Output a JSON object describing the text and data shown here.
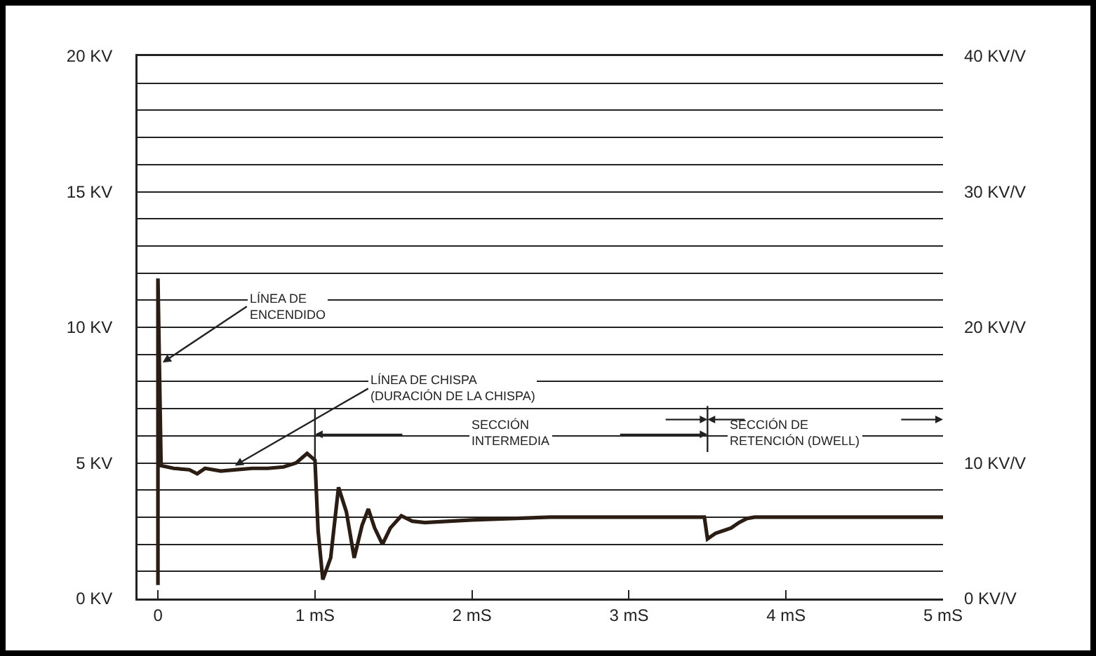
{
  "chart_data": {
    "type": "line",
    "x": [
      0,
      0,
      0.02,
      0.1,
      0.2,
      0.25,
      0.3,
      0.4,
      0.5,
      0.6,
      0.7,
      0.8,
      0.88,
      0.95,
      1.0,
      1.02,
      1.05,
      1.1,
      1.15,
      1.2,
      1.25,
      1.3,
      1.34,
      1.38,
      1.43,
      1.48,
      1.55,
      1.62,
      1.7,
      2.0,
      2.5,
      3.0,
      3.48,
      3.5,
      3.55,
      3.6,
      3.65,
      3.7,
      3.75,
      3.8,
      4.0,
      5.0
    ],
    "series": [
      {
        "color": "#2b1d14",
        "values": [
          0.5,
          11.8,
          4.9,
          4.8,
          4.75,
          4.6,
          4.8,
          4.7,
          4.75,
          4.8,
          4.8,
          4.85,
          5.0,
          5.35,
          5.1,
          2.5,
          0.7,
          1.5,
          4.1,
          3.2,
          1.5,
          2.7,
          3.3,
          2.6,
          2.0,
          2.6,
          3.05,
          2.85,
          2.8,
          2.9,
          3.0,
          3.0,
          3.0,
          2.2,
          2.4,
          2.5,
          2.6,
          2.8,
          2.95,
          3.0,
          3.0,
          3.0
        ]
      }
    ],
    "xlim": [
      -0.13,
      5
    ],
    "xticks": [
      {
        "value": 0,
        "label": "0"
      },
      {
        "value": 1,
        "label": "1 mS"
      },
      {
        "value": 2,
        "label": "2 mS"
      },
      {
        "value": 3,
        "label": "3 mS"
      },
      {
        "value": 4,
        "label": "4 mS"
      },
      {
        "value": 5,
        "label": "5 mS"
      }
    ],
    "ylim": [
      0,
      20
    ],
    "yticks": [
      {
        "value": 0,
        "label": "0 KV"
      },
      {
        "value": 1,
        "label": null
      },
      {
        "value": 2,
        "label": null
      },
      {
        "value": 3,
        "label": null
      },
      {
        "value": 4,
        "label": null
      },
      {
        "value": 5,
        "label": "5 KV"
      },
      {
        "value": 6,
        "label": null
      },
      {
        "value": 7,
        "label": null
      },
      {
        "value": 8,
        "label": null
      },
      {
        "value": 9,
        "label": null
      },
      {
        "value": 10,
        "label": "10 KV"
      },
      {
        "value": 11,
        "label": null
      },
      {
        "value": 12,
        "label": null
      },
      {
        "value": 13,
        "label": null
      },
      {
        "value": 14,
        "label": null
      },
      {
        "value": 15,
        "label": "15 KV"
      },
      {
        "value": 16,
        "label": null
      },
      {
        "value": 17,
        "label": null
      },
      {
        "value": 18,
        "label": null
      },
      {
        "value": 19,
        "label": null
      },
      {
        "value": 20,
        "label": "20 KV"
      }
    ],
    "y2lim": [
      0,
      40
    ],
    "y2ticks": [
      {
        "value": 0,
        "label": "0 KV/V"
      },
      {
        "value": 10,
        "label": "10 KV/V"
      },
      {
        "value": 20,
        "label": "20 KV/V"
      },
      {
        "value": 30,
        "label": "30 KV/V"
      },
      {
        "value": 40,
        "label": "40 KV/V"
      }
    ],
    "ref_lines": [
      {
        "axis": "x",
        "value": 1
      },
      {
        "axis": "x",
        "value": 3.5
      }
    ],
    "annotations": [
      {
        "text": "LÍNEA DE\nENCENDIDO",
        "x": 0.03,
        "y": 8.7
      },
      {
        "text": "LÍNEA DE CHISPA\n(DURACIÓN DE LA CHISPA)",
        "x": 0.49,
        "y": 4.9
      },
      "SECCIÓN\nINTERMEDIA",
      "SECCIÓN DE\nRETENCIÓN (DWELL)"
    ],
    "grid": "y",
    "marker": "none",
    "line_style": "solid"
  }
}
